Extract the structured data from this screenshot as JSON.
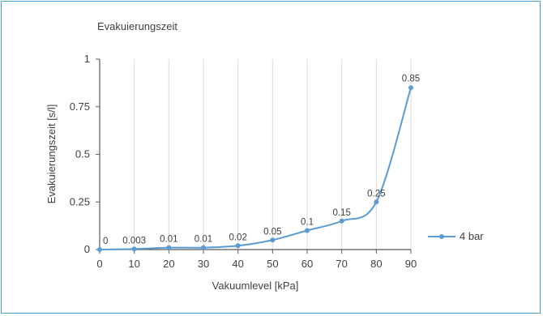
{
  "chart_data": {
    "type": "line",
    "title": "Evakuierungszeit",
    "xlabel": "Vakuumlevel [kPa]",
    "ylabel": "Evakuierungszeit [s/l]",
    "x": [
      0,
      10,
      20,
      30,
      40,
      50,
      60,
      70,
      80,
      90
    ],
    "xticks": [
      "0",
      "10",
      "20",
      "30",
      "40",
      "50",
      "60",
      "70",
      "80",
      "90"
    ],
    "yticks": [
      "0",
      "0.25",
      "0.5",
      "0.75",
      "1"
    ],
    "ylim": [
      0,
      1
    ],
    "xlim": [
      0,
      90
    ],
    "grid": "vertical",
    "legend_position": "right",
    "series": [
      {
        "name": "4 bar",
        "color": "#5b9bd5",
        "values": [
          0,
          0.003,
          0.01,
          0.01,
          0.02,
          0.05,
          0.1,
          0.15,
          0.25,
          0.85
        ],
        "labels": [
          "0",
          "0.003",
          "0.01",
          "0.01",
          "0.02",
          "0.05",
          "0.1",
          "0.15",
          "0.25",
          "0.85"
        ]
      }
    ]
  }
}
